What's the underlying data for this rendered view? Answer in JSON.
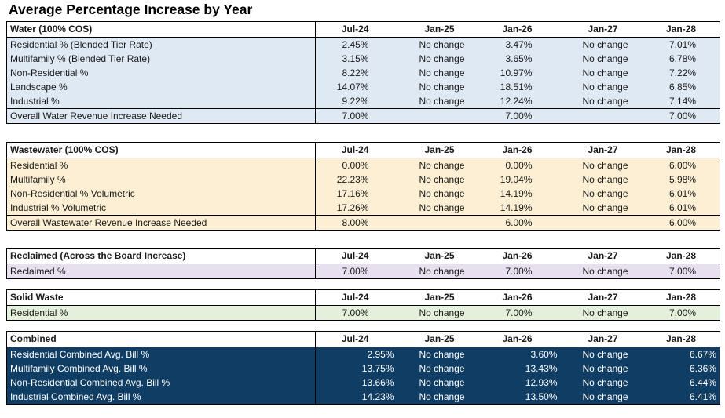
{
  "title": "Average Percentage Increase by Year",
  "columns": [
    "Jul-24",
    "Jan-25",
    "Jan-26",
    "Jan-27",
    "Jan-28"
  ],
  "water": {
    "header": "Water (100% COS)",
    "rows": [
      {
        "label": "Residential % (Blended Tier Rate)",
        "values": [
          "2.45%",
          "No change",
          "3.47%",
          "No change",
          "7.01%"
        ]
      },
      {
        "label": "Multifamily % (Blended Tier Rate)",
        "values": [
          "3.15%",
          "No change",
          "3.65%",
          "No change",
          "6.78%"
        ]
      },
      {
        "label": "Non-Residential %",
        "values": [
          "8.22%",
          "No change",
          "10.97%",
          "No change",
          "7.22%"
        ]
      },
      {
        "label": "Landscape %",
        "values": [
          "14.07%",
          "No change",
          "18.51%",
          "No change",
          "6.85%"
        ]
      },
      {
        "label": "Industrial %",
        "values": [
          "9.22%",
          "No change",
          "12.24%",
          "No change",
          "7.14%"
        ]
      }
    ],
    "total": {
      "label": "Overall Water Revenue Increase Needed",
      "values": [
        "7.00%",
        "",
        "7.00%",
        "",
        "7.00%"
      ]
    }
  },
  "wastewater": {
    "header": "Wastewater (100% COS)",
    "rows": [
      {
        "label": "Residential %",
        "values": [
          "0.00%",
          "No change",
          "0.00%",
          "No change",
          "6.00%"
        ]
      },
      {
        "label": "Multifamily %",
        "values": [
          "22.23%",
          "No change",
          "19.04%",
          "No change",
          "5.98%"
        ]
      },
      {
        "label": "Non-Residential % Volumetric",
        "values": [
          "17.16%",
          "No change",
          "14.19%",
          "No change",
          "6.01%"
        ]
      },
      {
        "label": "Industrial % Volumetric",
        "values": [
          "17.26%",
          "No change",
          "14.19%",
          "No change",
          "6.01%"
        ]
      }
    ],
    "total": {
      "label": "Overall Wastewater Revenue Increase Needed",
      "values": [
        "8.00%",
        "",
        "6.00%",
        "",
        "6.00%"
      ]
    }
  },
  "reclaimed": {
    "header": "Reclaimed (Across the Board Increase)",
    "rows": [
      {
        "label": "Reclaimed %",
        "values": [
          "7.00%",
          "No change",
          "7.00%",
          "No change",
          "7.00%"
        ]
      }
    ]
  },
  "solid_waste": {
    "header": "Solid Waste",
    "rows": [
      {
        "label": "Residential %",
        "values": [
          "7.00%",
          "No change",
          "7.00%",
          "No change",
          "7.00%"
        ]
      }
    ]
  },
  "combined": {
    "header": "Combined",
    "rows": [
      {
        "label": "Residential Combined Avg. Bill %",
        "values": [
          "2.95%",
          "No change",
          "3.60%",
          "No change",
          "6.67%"
        ]
      },
      {
        "label": "Multifamily Combined Avg. Bill %",
        "values": [
          "13.75%",
          "No change",
          "13.43%",
          "No change",
          "6.36%"
        ]
      },
      {
        "label": "Non-Residential Combined Avg. Bill %",
        "values": [
          "13.66%",
          "No change",
          "12.93%",
          "No change",
          "6.44%"
        ]
      },
      {
        "label": "Industrial Combined Avg. Bill %",
        "values": [
          "14.23%",
          "No change",
          "13.50%",
          "No change",
          "6.41%"
        ]
      }
    ]
  },
  "colors": {
    "water_fill": "#dfe9f4",
    "wastewater_fill": "#fcefd3",
    "reclaimed_fill": "#e8e0f0",
    "solid_waste_fill": "#e4efdc",
    "combined_fill": "#0f3d63"
  }
}
